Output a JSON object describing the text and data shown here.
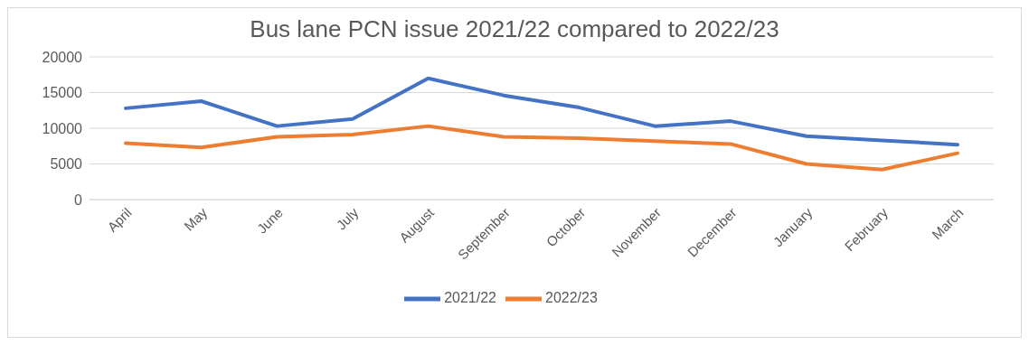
{
  "chart_data": {
    "type": "line",
    "title": "Bus lane PCN issue 2021/22 compared to 2022/23",
    "categories": [
      "April",
      "May",
      "June",
      "July",
      "August",
      "September",
      "October",
      "November",
      "December",
      "January",
      "February",
      "March"
    ],
    "series": [
      {
        "name": "2021/22",
        "color": "#4472c4",
        "values": [
          12800,
          13800,
          10300,
          11300,
          17000,
          14600,
          12900,
          10300,
          11000,
          8900,
          8300,
          7700
        ]
      },
      {
        "name": "2022/23",
        "color": "#ed7d31",
        "values": [
          7900,
          7300,
          8800,
          9100,
          10300,
          8800,
          8600,
          8200,
          7800,
          5000,
          4200,
          6500
        ]
      }
    ],
    "ylim": [
      0,
      20000
    ],
    "yticks": [
      0,
      5000,
      10000,
      15000,
      20000
    ],
    "grid": "y",
    "legend": "bottom",
    "marker": "none",
    "line_style": "solid"
  }
}
